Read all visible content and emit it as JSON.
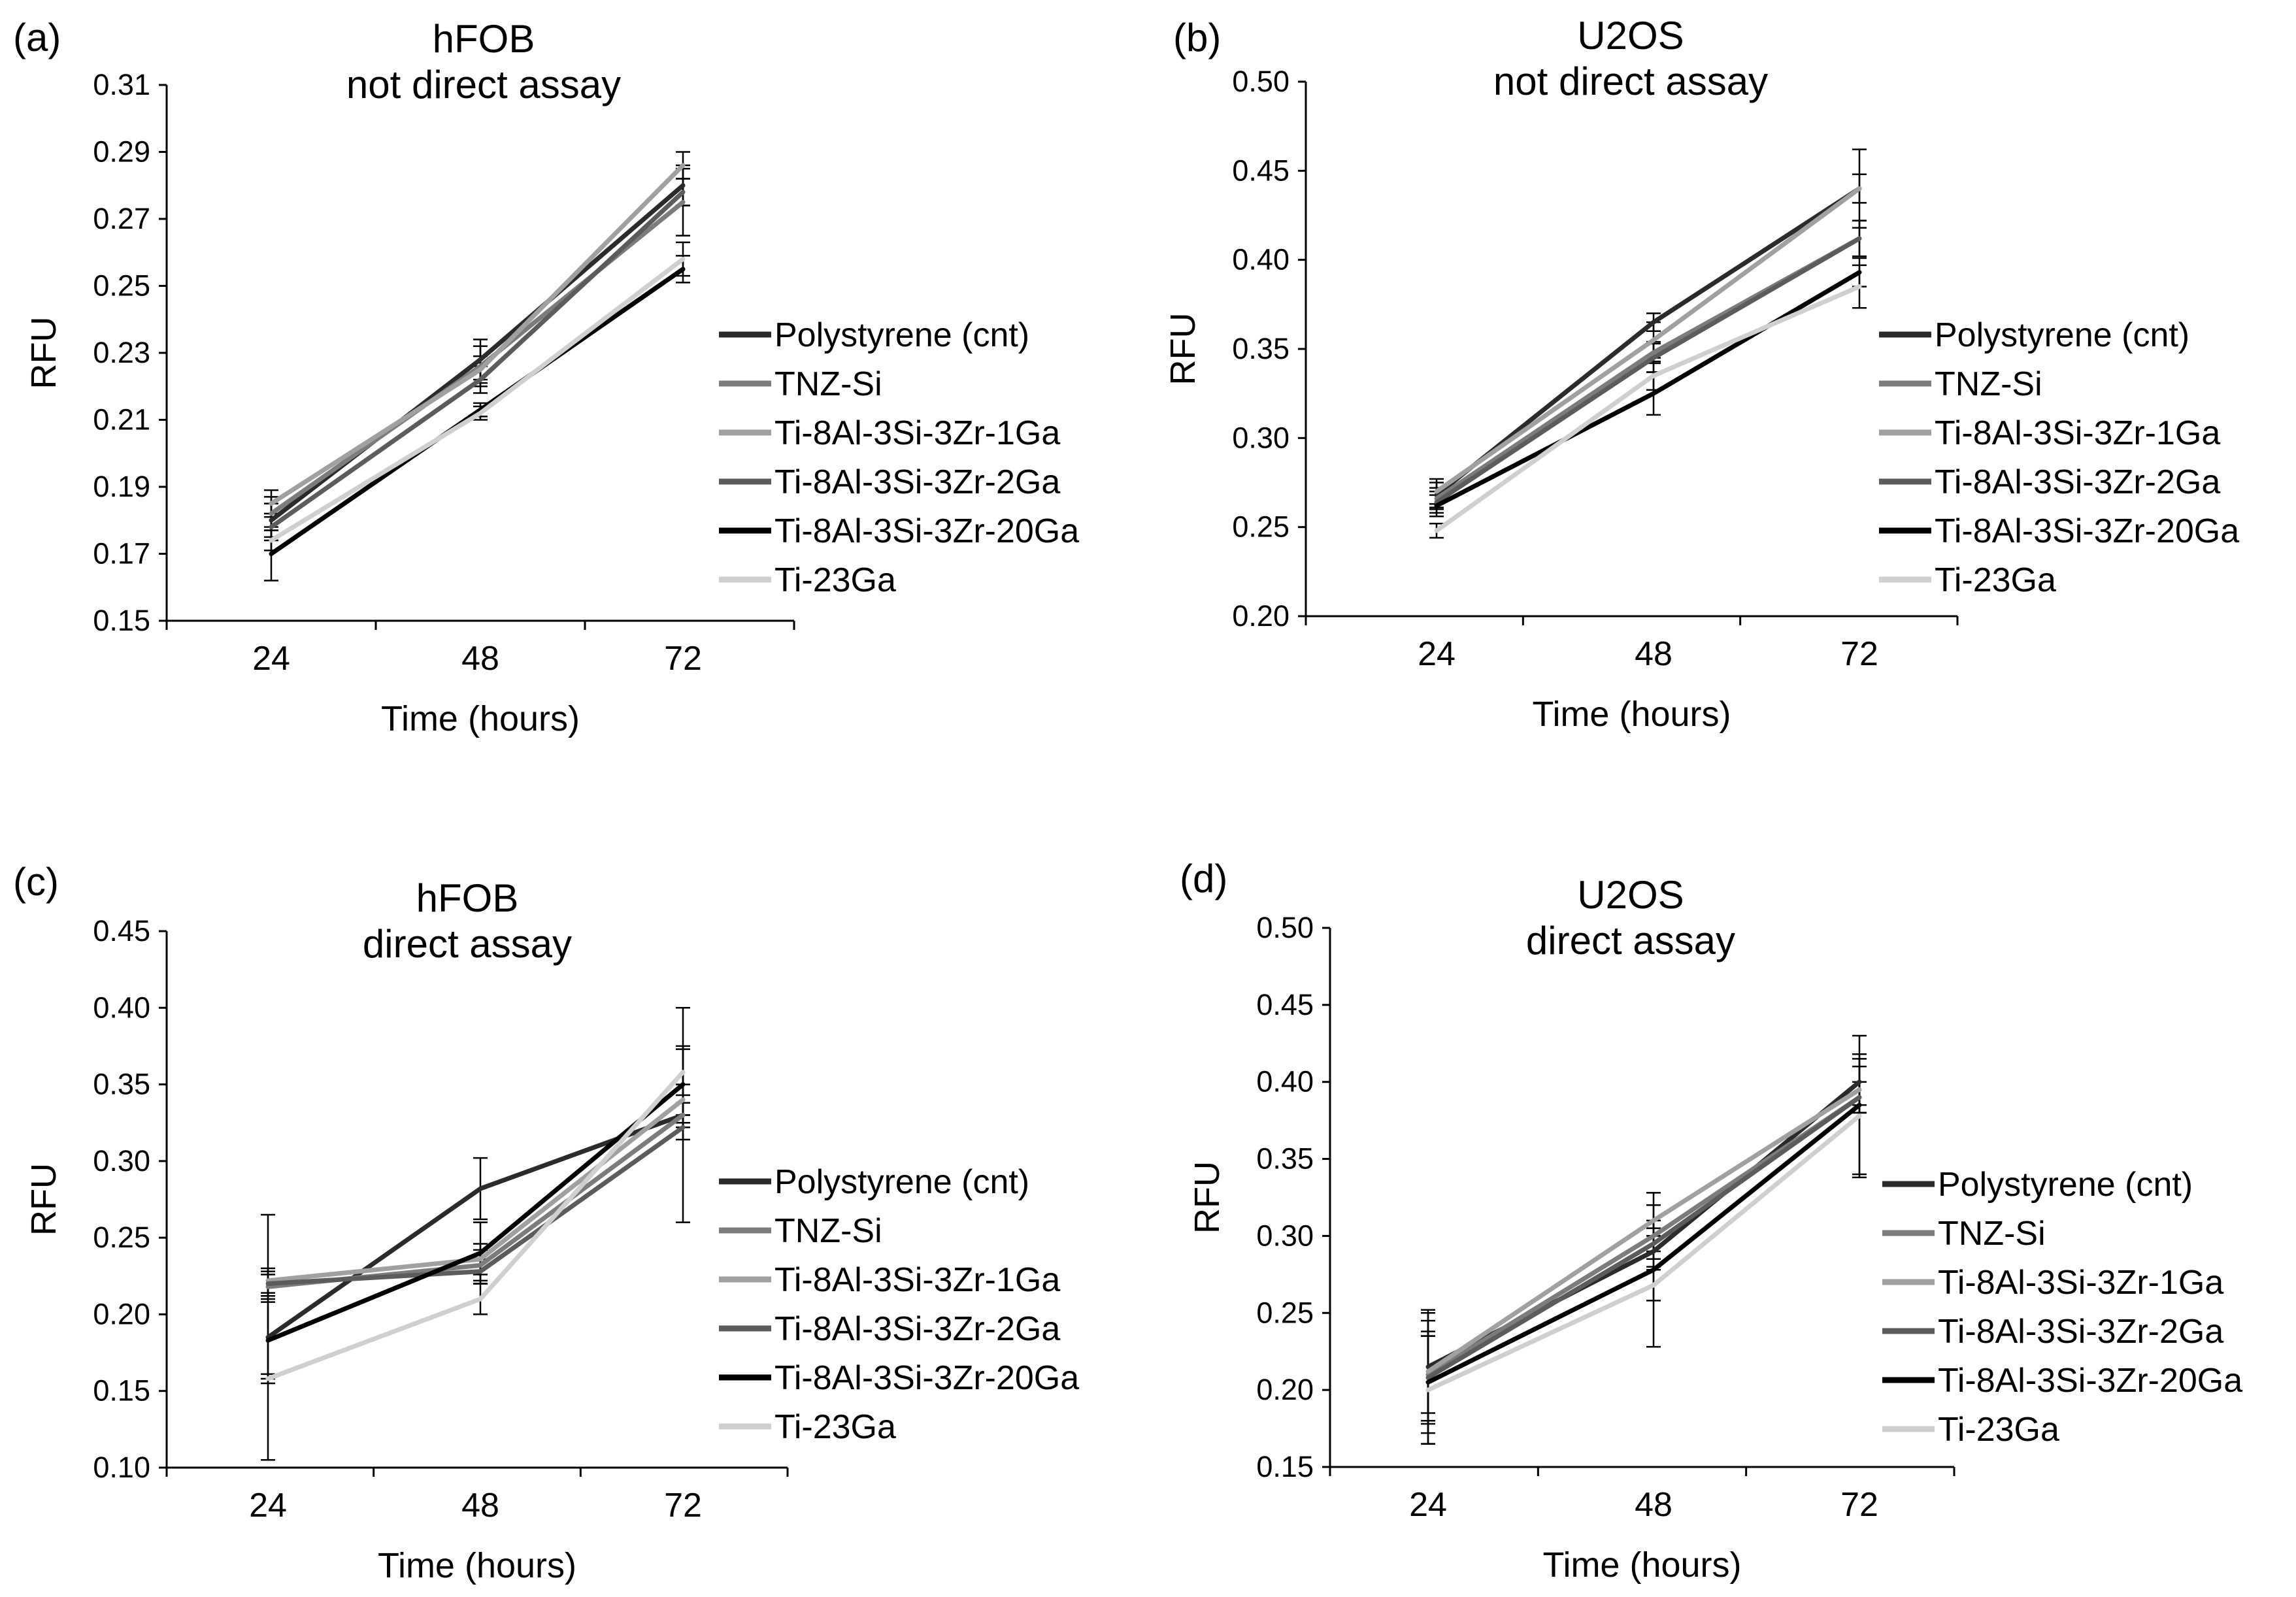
{
  "figure": {
    "series_styles": [
      {
        "name": "Polystyrene (cnt)",
        "color": "#2b2b2b"
      },
      {
        "name": "TNZ-Si",
        "color": "#7c7c7c"
      },
      {
        "name": "Ti-8Al-3Si-3Zr-1Ga",
        "color": "#a0a0a0"
      },
      {
        "name": "Ti-8Al-3Si-3Zr-2Ga",
        "color": "#5c5c5c"
      },
      {
        "name": "Ti-8Al-3Si-3Zr-20Ga",
        "color": "#000000"
      },
      {
        "name": "Ti-23Ga",
        "color": "#cfcfcf"
      }
    ]
  },
  "chart_data": [
    {
      "panel": "(a)",
      "type": "line",
      "title_lines": [
        "hFOB",
        "not direct assay"
      ],
      "xlabel": "Time (hours)",
      "ylabel": "RFU",
      "categories": [
        "24",
        "48",
        "72"
      ],
      "ylim": [
        0.15,
        0.31
      ],
      "yticks": [
        "0.15",
        "0.17",
        "0.19",
        "0.21",
        "0.23",
        "0.25",
        "0.27",
        "0.29",
        "0.31"
      ],
      "legend_position": "right",
      "series": [
        {
          "name": "Polystyrene (cnt)",
          "values": [
            0.18,
            0.228,
            0.28
          ],
          "errors": [
            0.005,
            0.006,
            0.006
          ]
        },
        {
          "name": "TNZ-Si",
          "values": [
            0.182,
            0.226,
            0.275
          ],
          "errors": [
            0.005,
            0.006,
            0.01
          ]
        },
        {
          "name": "Ti-8Al-3Si-3Zr-1Ga",
          "values": [
            0.185,
            0.225,
            0.286
          ],
          "errors": [
            0.004,
            0.004,
            0.004
          ]
        },
        {
          "name": "Ti-8Al-3Si-3Zr-2Ga",
          "values": [
            0.178,
            0.222,
            0.278
          ],
          "errors": [
            0.004,
            0.004,
            0.004
          ]
        },
        {
          "name": "Ti-8Al-3Si-3Zr-20Ga",
          "values": [
            0.17,
            0.213,
            0.255
          ],
          "errors": [
            0.008,
            0.002,
            0.004
          ]
        },
        {
          "name": "Ti-23Ga",
          "values": [
            0.174,
            0.212,
            0.258
          ],
          "errors": [
            0.003,
            0.002,
            0.005
          ]
        }
      ]
    },
    {
      "panel": "(b)",
      "type": "line",
      "title_lines": [
        "U2OS",
        "not direct assay"
      ],
      "xlabel": "Time (hours)",
      "ylabel": "RFU",
      "categories": [
        "24",
        "48",
        "72"
      ],
      "ylim": [
        0.2,
        0.5
      ],
      "yticks": [
        "0.20",
        "0.25",
        "0.30",
        "0.35",
        "0.40",
        "0.45",
        "0.50"
      ],
      "legend_position": "right",
      "series": [
        {
          "name": "Polystyrene (cnt)",
          "values": [
            0.268,
            0.365,
            0.44
          ],
          "errors": [
            0.007,
            0.005,
            0.022
          ]
        },
        {
          "name": "TNZ-Si",
          "values": [
            0.266,
            0.348,
            0.412
          ],
          "errors": [
            0.006,
            0.006,
            0.01
          ]
        },
        {
          "name": "Ti-8Al-3Si-3Zr-1Ga",
          "values": [
            0.27,
            0.355,
            0.44
          ],
          "errors": [
            0.007,
            0.01,
            0.008
          ]
        },
        {
          "name": "Ti-8Al-3Si-3Zr-2Ga",
          "values": [
            0.264,
            0.345,
            0.412
          ],
          "errors": [
            0.006,
            0.008,
            0.01
          ]
        },
        {
          "name": "Ti-8Al-3Si-3Zr-20Ga",
          "values": [
            0.262,
            0.325,
            0.393
          ],
          "errors": [
            0.006,
            0.012,
            0.008
          ]
        },
        {
          "name": "Ti-23Ga",
          "values": [
            0.248,
            0.335,
            0.385
          ],
          "errors": [
            0.004,
            0.008,
            0.012
          ]
        }
      ]
    },
    {
      "panel": "(c)",
      "type": "line",
      "title_lines": [
        "hFOB",
        "direct assay"
      ],
      "xlabel": "Time (hours)",
      "ylabel": "RFU",
      "categories": [
        "24",
        "48",
        "72"
      ],
      "ylim": [
        0.1,
        0.45
      ],
      "yticks": [
        "0.10",
        "0.15",
        "0.20",
        "0.25",
        "0.30",
        "0.35",
        "0.40",
        "0.45"
      ],
      "legend_position": "right",
      "series": [
        {
          "name": "Polystyrene (cnt)",
          "values": [
            0.185,
            0.282,
            0.33
          ],
          "errors": [
            0.08,
            0.02,
            0.07
          ]
        },
        {
          "name": "TNZ-Si",
          "values": [
            0.218,
            0.232,
            0.33
          ],
          "errors": [
            0.008,
            0.01,
            0.008
          ]
        },
        {
          "name": "Ti-8Al-3Si-3Zr-1Ga",
          "values": [
            0.222,
            0.236,
            0.34
          ],
          "errors": [
            0.008,
            0.01,
            0.01
          ]
        },
        {
          "name": "Ti-8Al-3Si-3Zr-2Ga",
          "values": [
            0.22,
            0.228,
            0.322
          ],
          "errors": [
            0.008,
            0.008,
            0.008
          ]
        },
        {
          "name": "Ti-8Al-3Si-3Zr-20Ga",
          "values": [
            0.183,
            0.24,
            0.35
          ],
          "errors": [
            0.025,
            0.02,
            0.025
          ]
        },
        {
          "name": "Ti-23Ga",
          "values": [
            0.158,
            0.21,
            0.358
          ],
          "errors": [
            0.003,
            0.01,
            0.015
          ]
        }
      ]
    },
    {
      "panel": "(d)",
      "type": "line",
      "title_lines": [
        "U2OS",
        "direct assay"
      ],
      "xlabel": "Time (hours)",
      "ylabel": "RFU",
      "categories": [
        "24",
        "48",
        "72"
      ],
      "ylim": [
        0.15,
        0.5
      ],
      "yticks": [
        "0.15",
        "0.20",
        "0.25",
        "0.30",
        "0.35",
        "0.40",
        "0.45",
        "0.50"
      ],
      "legend_position": "right",
      "series": [
        {
          "name": "Polystyrene (cnt)",
          "values": [
            0.215,
            0.29,
            0.4
          ],
          "errors": [
            0.035,
            0.01,
            0.015
          ]
        },
        {
          "name": "TNZ-Si",
          "values": [
            0.21,
            0.3,
            0.39
          ],
          "errors": [
            0.025,
            0.01,
            0.01
          ]
        },
        {
          "name": "Ti-8Al-3Si-3Zr-1Ga",
          "values": [
            0.212,
            0.31,
            0.395
          ],
          "errors": [
            0.04,
            0.01,
            0.015
          ]
        },
        {
          "name": "Ti-8Al-3Si-3Zr-2Ga",
          "values": [
            0.208,
            0.295,
            0.39
          ],
          "errors": [
            0.03,
            0.01,
            0.01
          ]
        },
        {
          "name": "Ti-8Al-3Si-3Zr-20Ga",
          "values": [
            0.205,
            0.278,
            0.385
          ],
          "errors": [
            0.04,
            0.05,
            0.045
          ]
        },
        {
          "name": "Ti-23Ga",
          "values": [
            0.2,
            0.268,
            0.378
          ],
          "errors": [
            0.035,
            0.01,
            0.04
          ]
        }
      ]
    }
  ]
}
